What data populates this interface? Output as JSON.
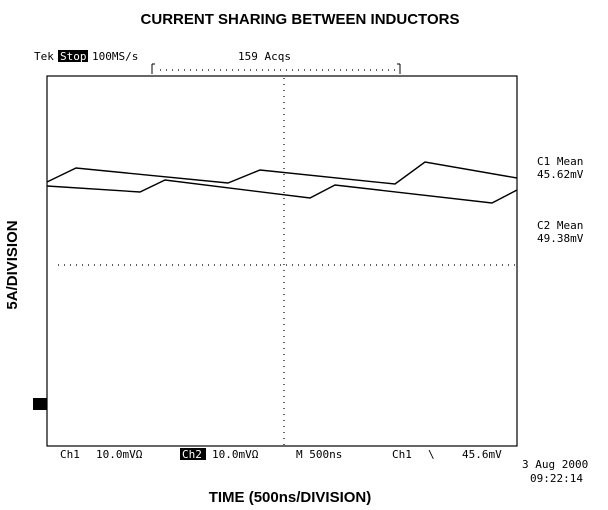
{
  "title": "CURRENT SHARING BETWEEN INDUCTORS",
  "header": {
    "brand": "Tek",
    "state": "Stop",
    "rate": "100MS/s",
    "acqs": "159 Acqs"
  },
  "readouts": [
    {
      "label": "C1 Mean",
      "value": "45.62mV"
    },
    {
      "label": "C2 Mean",
      "value": "49.38mV"
    }
  ],
  "footer": {
    "ch1": "Ch1",
    "ch1_scale": "10.0mVΩ",
    "ch2": "Ch2",
    "ch2_scale": "10.0mVΩ",
    "timebase": "M 500ns",
    "trigger_source": "Ch1",
    "trigger_slope": "\\",
    "trigger_level": "45.6mV"
  },
  "timestamp": {
    "date": "3 Aug 2000",
    "time": "09:22:14"
  },
  "y_label": "5A/DIVISION",
  "x_label": "TIME (500ns/DIVISION)"
}
